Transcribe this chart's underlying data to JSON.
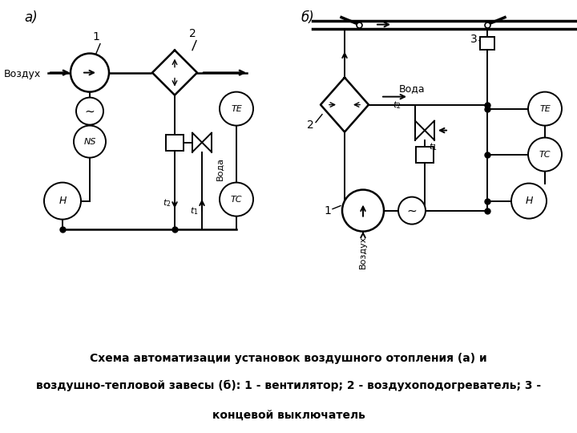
{
  "bg_color": "#ffffff",
  "caption_bg": "#80e0f0",
  "figsize": [
    7.2,
    5.4
  ],
  "dpi": 100,
  "caption_line1_normal": "Схема автоматизации установок воздушного отопления ",
  "caption_line1_italic": "(а)",
  "caption_line1_end": " и",
  "caption_line2_normal": "воздушно-тепловой завесы ",
  "caption_line2_italic": "(б):",
  "caption_line2_end": " 1 - вентилятор; 2 - воздухоподогреватель; 3 -",
  "caption_line3": "концевой выключатель"
}
